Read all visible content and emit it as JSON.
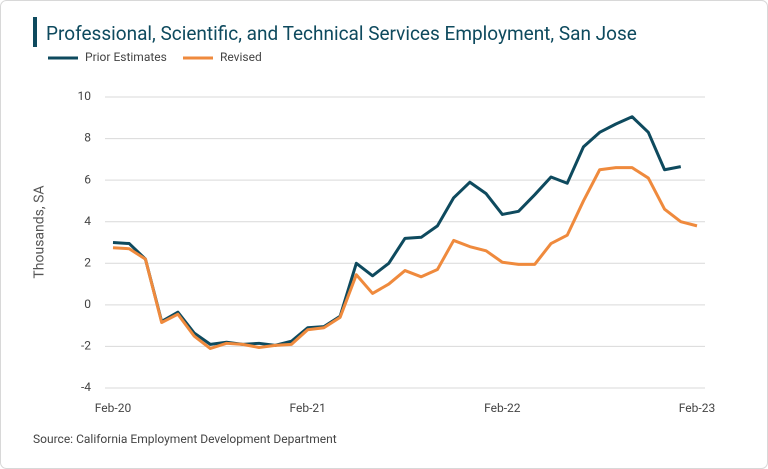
{
  "chart_data": {
    "type": "line",
    "title": "Professional, Scientific, and Technical Services Employment, San Jose",
    "y_label": "Thousands, SA",
    "source": "Source: California Employment Development Department",
    "categories": [
      "Feb-20",
      null,
      null,
      null,
      null,
      null,
      null,
      null,
      null,
      null,
      null,
      null,
      "Feb-21",
      null,
      null,
      null,
      null,
      null,
      null,
      null,
      null,
      null,
      null,
      null,
      "Feb-22",
      null,
      null,
      null,
      null,
      null,
      null,
      null,
      null,
      null,
      null,
      null,
      "Feb-23"
    ],
    "series": [
      {
        "name": "Prior Estimates",
        "color": "#0e4a5e",
        "values": [
          3.0,
          2.95,
          2.2,
          -0.8,
          -0.35,
          -1.35,
          -1.9,
          -1.8,
          -1.9,
          -1.85,
          -1.95,
          -1.75,
          -1.1,
          -1.05,
          -0.55,
          2.0,
          1.4,
          2.0,
          3.2,
          3.25,
          3.8,
          5.15,
          5.9,
          5.35,
          4.35,
          4.5,
          5.3,
          6.15,
          5.85,
          7.6,
          8.3,
          8.7,
          9.05,
          8.3,
          6.5,
          6.65,
          null
        ]
      },
      {
        "name": "Revised",
        "color": "#ef8a3d",
        "values": [
          2.75,
          2.7,
          2.2,
          -0.85,
          -0.45,
          -1.5,
          -2.1,
          -1.85,
          -1.9,
          -2.05,
          -1.95,
          -1.9,
          -1.2,
          -1.1,
          -0.6,
          1.45,
          0.55,
          1.0,
          1.65,
          1.35,
          1.7,
          3.1,
          2.8,
          2.6,
          2.05,
          1.95,
          1.95,
          2.95,
          3.35,
          5.0,
          6.5,
          6.6,
          6.6,
          6.1,
          4.6,
          4.0,
          3.8
        ]
      }
    ],
    "ylim": [
      -4,
      10
    ],
    "yticks": [
      -4,
      -2,
      0,
      2,
      4,
      6,
      8,
      10
    ],
    "grid": true,
    "legend": "top-left"
  }
}
